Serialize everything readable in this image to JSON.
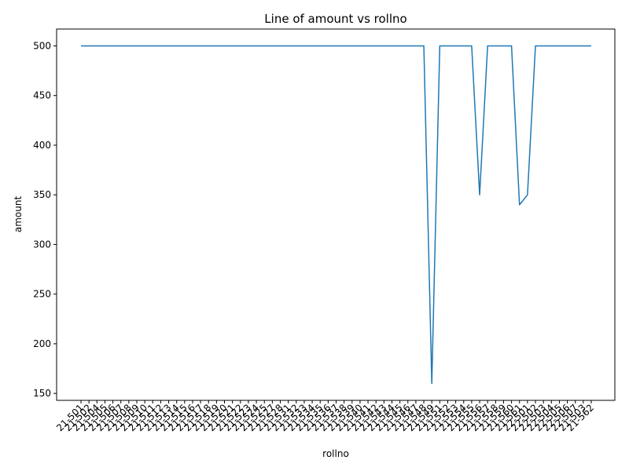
{
  "chart_data": {
    "type": "line",
    "title": "Line of amount vs rollno",
    "xlabel": "rollno",
    "ylabel": "amount",
    "ylim": [
      143,
      517
    ],
    "yticks": [
      150,
      200,
      250,
      300,
      350,
      400,
      450,
      500
    ],
    "grid": false,
    "line_color": "#1f77b4",
    "categories": [
      "21-501",
      "21-502",
      "21-504",
      "21-505",
      "21-506",
      "21-507",
      "21-508",
      "21-509",
      "21-510",
      "21-511",
      "21-512",
      "21-513",
      "21-514",
      "21-515",
      "21-516",
      "21-517",
      "21-518",
      "21-519",
      "21-520",
      "21-521",
      "21-522",
      "21-523",
      "21-524",
      "21-525",
      "21-527",
      "21-528",
      "21-531",
      "21-532",
      "21-533",
      "21-534",
      "21-535",
      "21-536",
      "21-537",
      "21-538",
      "21-539",
      "21-540",
      "21-541",
      "21-542",
      "21-543",
      "21-544",
      "21-545",
      "21-546",
      "21-547",
      "21-548",
      "21-549",
      "21-551",
      "21-552",
      "21-553",
      "21-554",
      "21-555",
      "21-556",
      "21-557",
      "21-558",
      "21-559",
      "21-560",
      "21-561",
      "22-501",
      "22-502",
      "22-503",
      "22-504",
      "22-505",
      "22-506",
      "22-507",
      "21-503",
      "21-562"
    ],
    "values": [
      500,
      500,
      500,
      500,
      500,
      500,
      500,
      500,
      500,
      500,
      500,
      500,
      500,
      500,
      500,
      500,
      500,
      500,
      500,
      500,
      500,
      500,
      500,
      500,
      500,
      500,
      500,
      500,
      500,
      500,
      500,
      500,
      500,
      500,
      500,
      500,
      500,
      500,
      500,
      500,
      500,
      500,
      500,
      500,
      160,
      500,
      500,
      500,
      500,
      500,
      350,
      500,
      500,
      500,
      500,
      340,
      350,
      500,
      500,
      500,
      500,
      500,
      500,
      500,
      500
    ]
  }
}
